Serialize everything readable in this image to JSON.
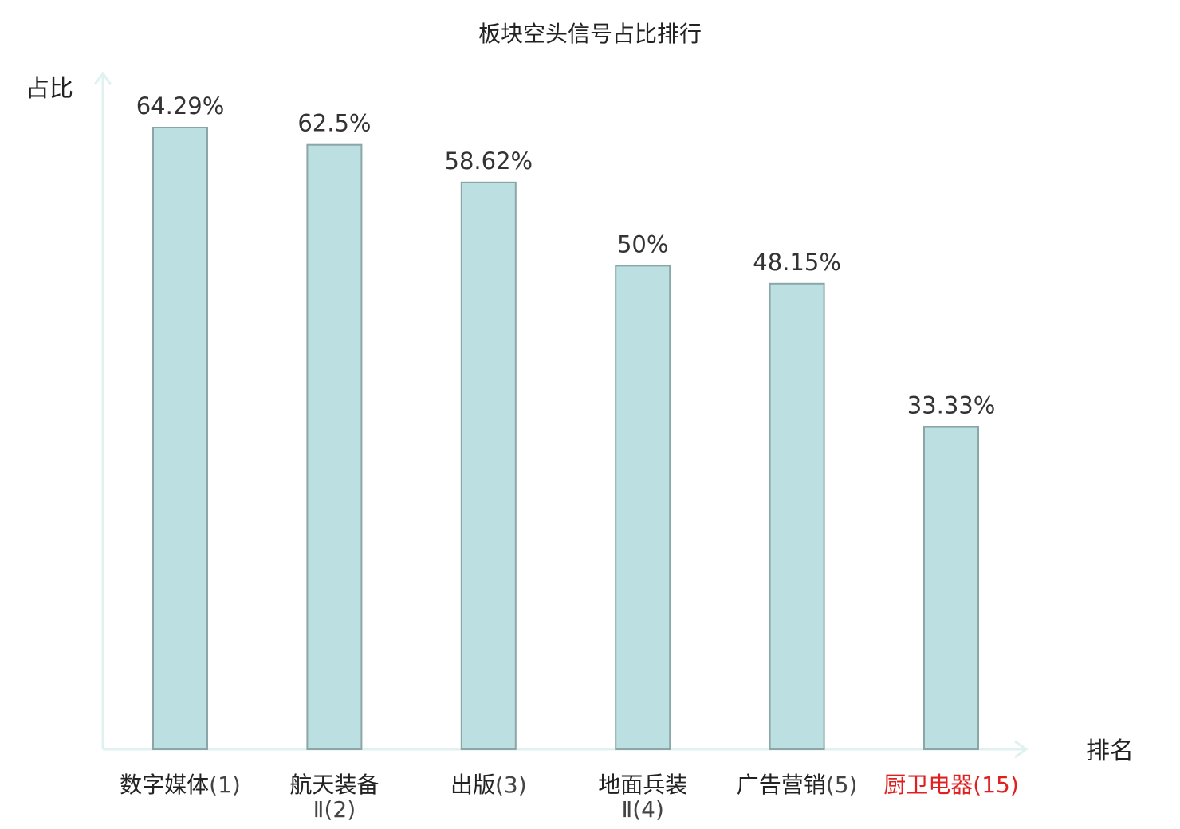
{
  "chart_data": {
    "type": "bar",
    "title": "板块空头信号占比排行",
    "ylabel": "占比",
    "xlabel": "排名",
    "ylim": [
      0,
      70
    ],
    "grid": false,
    "categories": [
      {
        "name": "数字媒体",
        "rank": "(1)",
        "name_line2": "",
        "highlight": false
      },
      {
        "name": "航天装备",
        "rank": "(2)",
        "name_line2": "Ⅱ",
        "highlight": false
      },
      {
        "name": "出版",
        "rank": "(3)",
        "name_line2": "",
        "highlight": false
      },
      {
        "name": "地面兵装",
        "rank": "(4)",
        "name_line2": "Ⅱ",
        "highlight": false
      },
      {
        "name": "广告营销",
        "rank": "(5)",
        "name_line2": "",
        "highlight": false
      },
      {
        "name": "厨卫电器",
        "rank": "(15)",
        "name_line2": "",
        "highlight": true
      }
    ],
    "values": [
      64.29,
      62.5,
      58.62,
      50,
      48.15,
      33.33
    ],
    "value_labels": [
      "64.29%",
      "62.5%",
      "58.62%",
      "50%",
      "48.15%",
      "33.33%"
    ],
    "colors": {
      "bar_fill": "#bce0e2",
      "bar_stroke": "#8aa6a8",
      "axis": "#dff2ef",
      "label": "#222222",
      "rank": "#444444",
      "highlight": "#e02020"
    }
  }
}
